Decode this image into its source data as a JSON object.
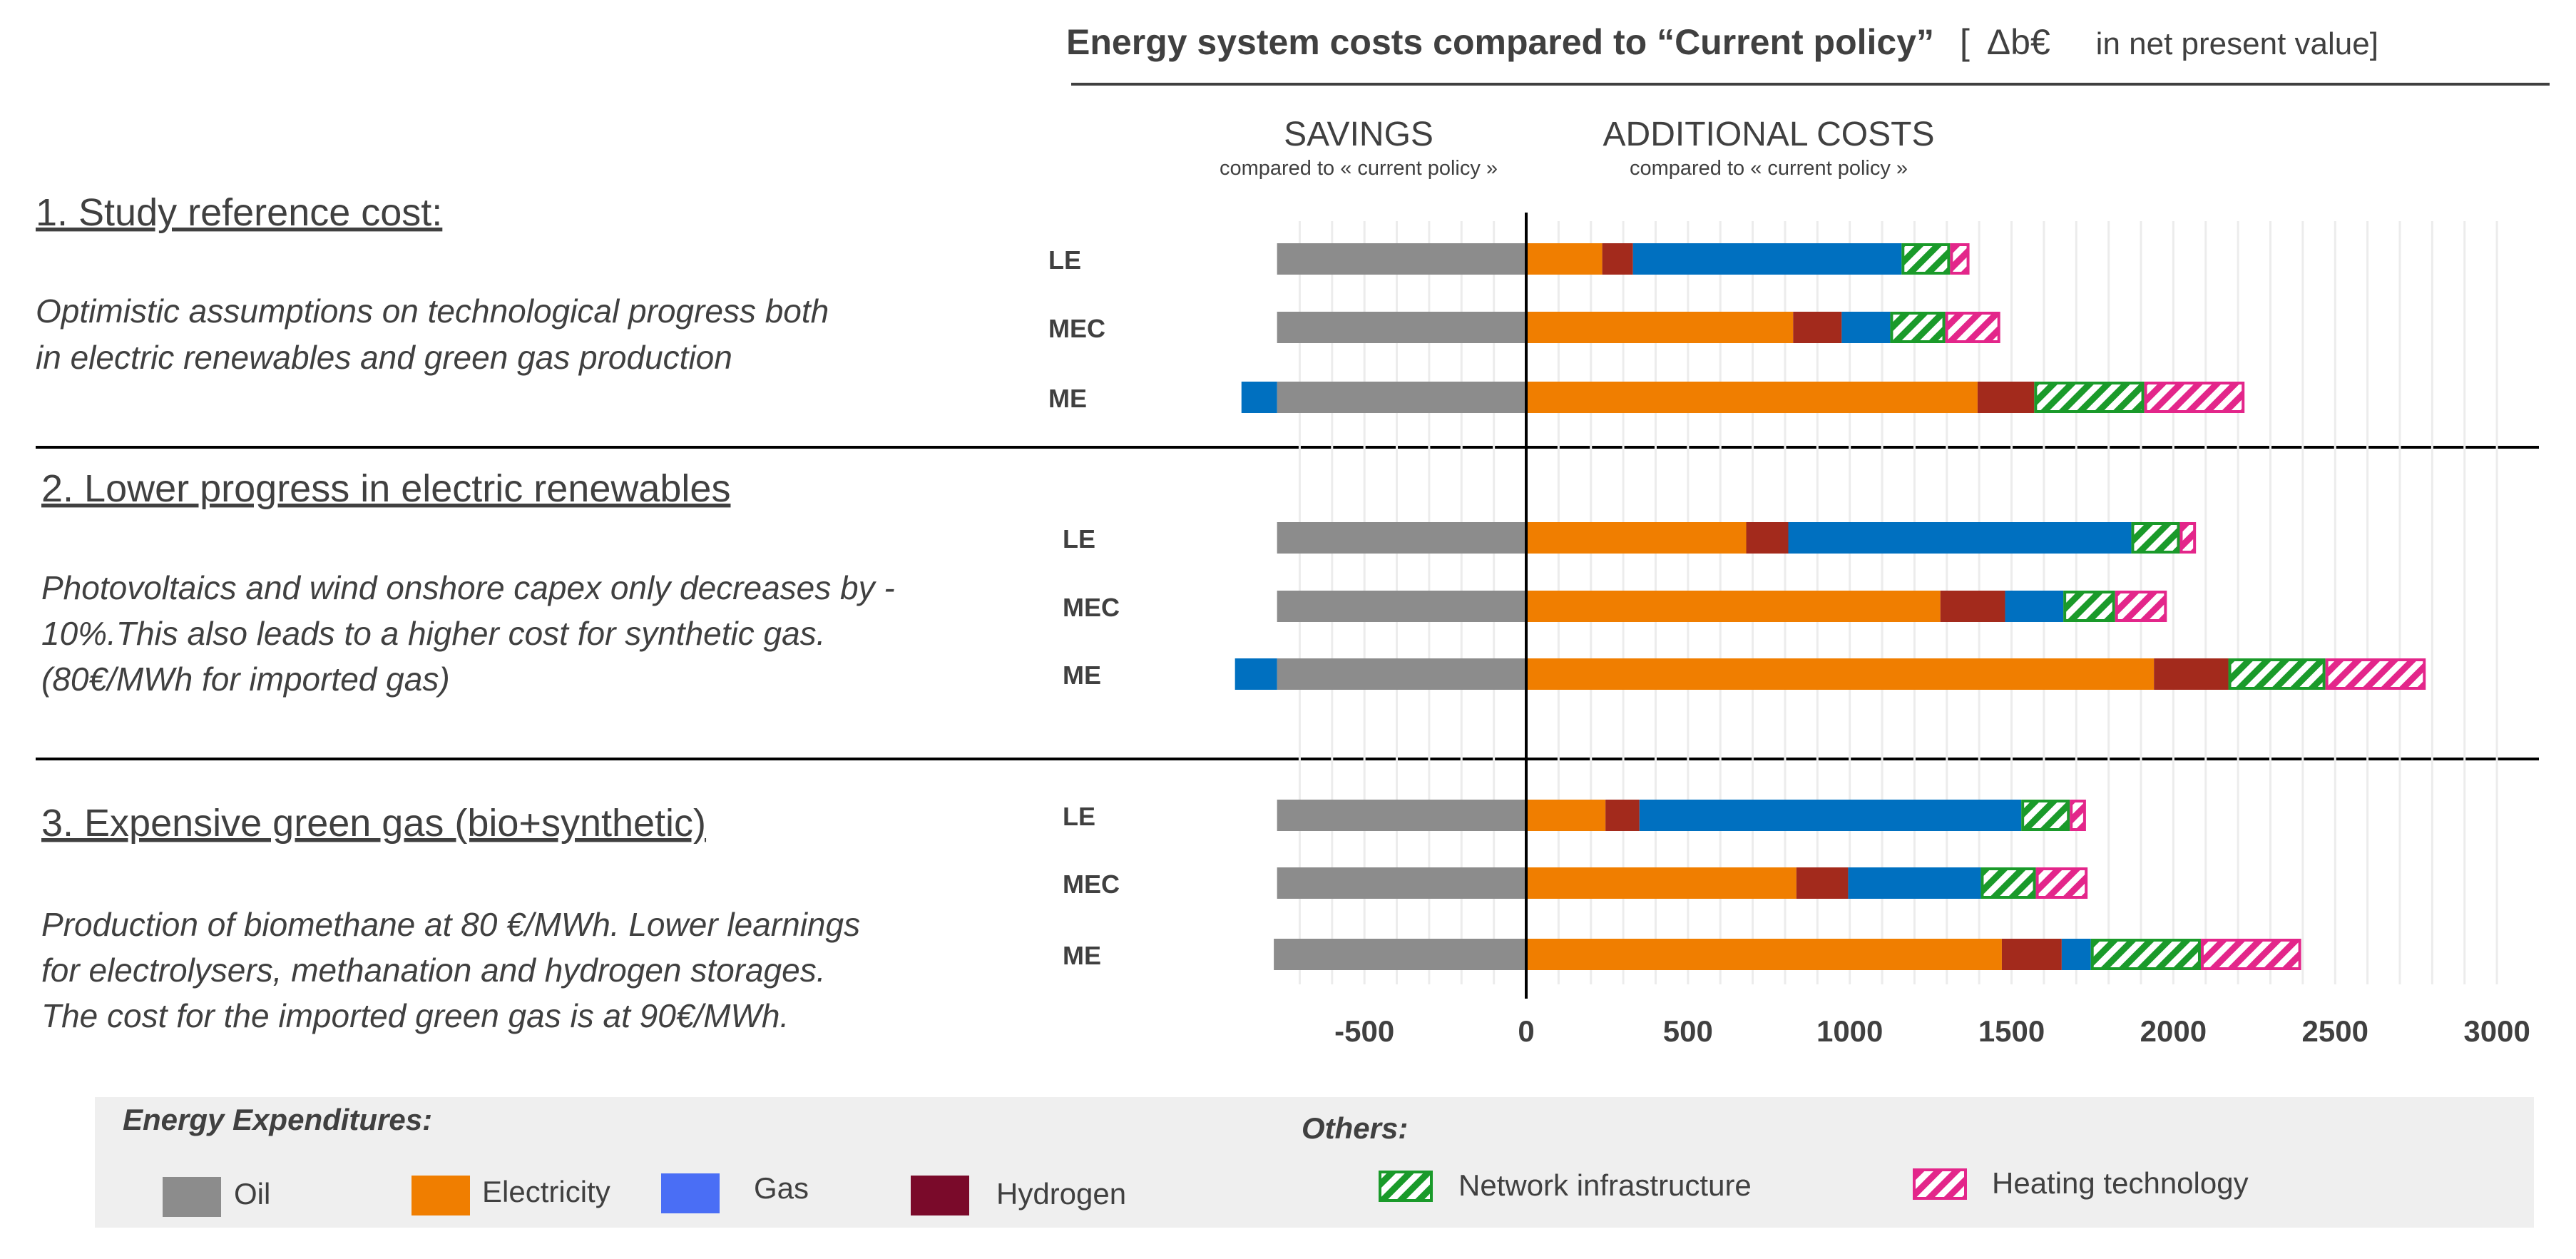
{
  "title": {
    "main": "Energy system costs compared to “Current policy”",
    "unit_open": "[",
    "unit_symbol": "Δb€",
    "unit_rest": "in net present value]"
  },
  "headers": {
    "savings": "SAVINGS",
    "savings_sub": "compared to « current policy »",
    "additional": "ADDITIONAL COSTS",
    "additional_sub": "compared to « current policy »"
  },
  "sections": [
    {
      "title": "1. Study  reference cost:",
      "lines": [
        "Optimistic assumptions on technological progress both",
        "in electric renewables and green gas production"
      ]
    },
    {
      "title": "2. Lower progress in electric renewables",
      "lines": [
        "Photovoltaics and wind onshore capex only decreases by -",
        "10%.This also leads to a higher cost for synthetic gas.",
        "(80€/MWh for imported gas)"
      ]
    },
    {
      "title": "3. Expensive green gas (bio+synthetic)",
      "lines": [
        "Production of biomethane at 80 €/MWh. Lower learnings",
        "for electrolysers, methanation and hydrogen storages.",
        "The cost for the imported green gas is at 90€/MWh."
      ]
    }
  ],
  "legend": {
    "energy_header": "Energy Expenditures:",
    "others_header": "Others:",
    "items": [
      {
        "key": "oil",
        "label": "Oil"
      },
      {
        "key": "electricity",
        "label": "Electricity"
      },
      {
        "key": "gas",
        "label": "Gas"
      },
      {
        "key": "hydrogen",
        "label": "Hydrogen"
      },
      {
        "key": "network",
        "label": "Network infrastructure"
      },
      {
        "key": "heating",
        "label": "Heating technology"
      }
    ]
  },
  "colors": {
    "oil": "#8c8c8c",
    "electricity": "#f07e00",
    "gas": "#0070c0",
    "gas_legend": "#4a6ef5",
    "hydrogen": "#a32a1c",
    "hydrogen_legend": "#7a0a2a",
    "network": "#1a9a2a",
    "heating": "#e3268a",
    "text": "#404040",
    "grid": "#ececec",
    "legend_bg": "#efefef"
  },
  "chart_data": {
    "type": "bar",
    "orientation": "horizontal",
    "stacked": true,
    "xlim": [
      -900,
      3100
    ],
    "xticks": [
      -500,
      0,
      500,
      1000,
      1500,
      2000,
      2500,
      3000
    ],
    "series_order": [
      "oil",
      "gas_neg",
      "electricity",
      "hydrogen",
      "gas",
      "network",
      "heating"
    ],
    "series_names": {
      "oil": "Oil",
      "gas_neg": "Gas",
      "electricity": "Electricity",
      "hydrogen": "Hydrogen",
      "gas": "Gas",
      "network": "Network infrastructure",
      "heating": "Heating technology"
    },
    "groups": [
      {
        "section": 1,
        "rows": [
          {
            "label": "LE",
            "values": {
              "oil": -770,
              "gas_neg": 0,
              "electricity": 235,
              "hydrogen": 95,
              "gas": 830,
              "network": 150,
              "heating": 60
            }
          },
          {
            "label": "MEC",
            "values": {
              "oil": -770,
              "gas_neg": 0,
              "electricity": 825,
              "hydrogen": 150,
              "gas": 150,
              "network": 170,
              "heating": 170
            }
          },
          {
            "label": "ME",
            "values": {
              "oil": -770,
              "gas_neg": -110,
              "electricity": 1395,
              "hydrogen": 175,
              "gas": 0,
              "network": 340,
              "heating": 310
            }
          }
        ]
      },
      {
        "section": 2,
        "rows": [
          {
            "label": "LE",
            "values": {
              "oil": -770,
              "gas_neg": 0,
              "electricity": 680,
              "hydrogen": 130,
              "gas": 1060,
              "network": 150,
              "heating": 50
            }
          },
          {
            "label": "MEC",
            "values": {
              "oil": -770,
              "gas_neg": 0,
              "electricity": 1280,
              "hydrogen": 200,
              "gas": 180,
              "network": 160,
              "heating": 160
            }
          },
          {
            "label": "ME",
            "values": {
              "oil": -770,
              "gas_neg": -130,
              "electricity": 1940,
              "hydrogen": 230,
              "gas": 0,
              "network": 300,
              "heating": 310
            }
          }
        ]
      },
      {
        "section": 3,
        "rows": [
          {
            "label": "LE",
            "values": {
              "oil": -770,
              "gas_neg": 0,
              "electricity": 245,
              "hydrogen": 105,
              "gas": 1180,
              "network": 150,
              "heating": 50
            }
          },
          {
            "label": "MEC",
            "values": {
              "oil": -770,
              "gas_neg": 0,
              "electricity": 835,
              "hydrogen": 160,
              "gas": 410,
              "network": 170,
              "heating": 160
            }
          },
          {
            "label": "ME",
            "values": {
              "oil": -780,
              "gas_neg": 0,
              "electricity": 1470,
              "hydrogen": 185,
              "gas": 90,
              "network": 340,
              "heating": 310
            }
          }
        ]
      }
    ]
  }
}
